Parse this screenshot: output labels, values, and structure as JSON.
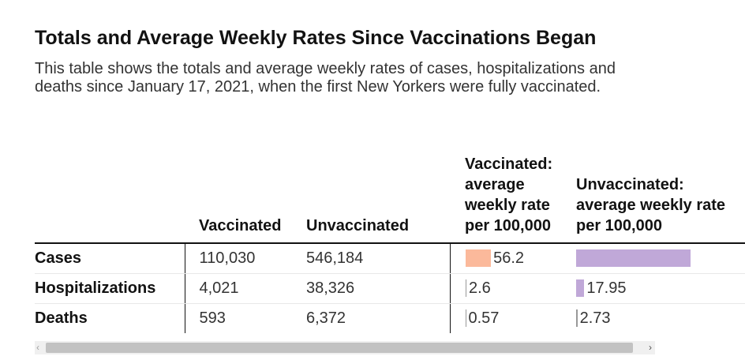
{
  "title": "Totals and Average Weekly Rates Since Vaccinations Began",
  "description": "This table shows the totals and average weekly rates of cases, hospitalizations and deaths since January 17, 2021, when the first New Yorkers were fully vaccinated.",
  "table": {
    "headers": [
      "",
      "Vaccinated",
      "Unvaccinated",
      "Vaccinated: average weekly rate per 100,000",
      "Unvaccinated: average weekly rate per 100,000"
    ],
    "rows": [
      {
        "label": "Cases",
        "vaccinated": "110,030",
        "unvaccinated": "546,184",
        "vax_rate": "56.2",
        "vax_rate_value": 56.2,
        "unvax_rate": "",
        "unvax_rate_value": 250
      },
      {
        "label": "Hospitalizations",
        "vaccinated": "4,021",
        "unvaccinated": "38,326",
        "vax_rate": "2.6",
        "vax_rate_value": 2.6,
        "unvax_rate": "17.95",
        "unvax_rate_value": 17.95
      },
      {
        "label": "Deaths",
        "vaccinated": "593",
        "unvaccinated": "6,372",
        "vax_rate": "0.57",
        "vax_rate_value": 0.57,
        "unvax_rate": "2.73",
        "unvax_rate_value": 2.73
      }
    ]
  },
  "colors": {
    "vaccinated_bar": "#fbb99b",
    "unvaccinated_bar": "#c0a8d8",
    "scrollbar_track": "#f0f0f0",
    "scrollbar_thumb": "#c2c2c2"
  },
  "scrollbar": {
    "left_arrow": "‹",
    "right_arrow": "›"
  }
}
